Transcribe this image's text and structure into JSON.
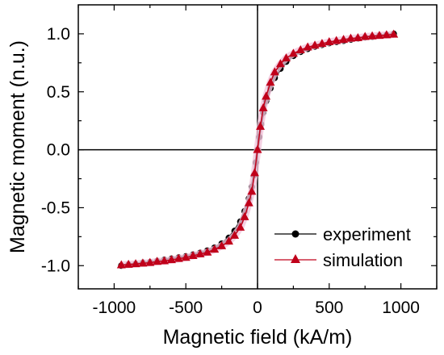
{
  "chart_data": {
    "type": "line",
    "xlabel": "Magnetic field (kA/m)",
    "ylabel": "Magnetic moment (n.u.)",
    "xlim": [
      -1250,
      1250
    ],
    "ylim": [
      -1.2,
      1.25
    ],
    "xticks": [
      -1000,
      -500,
      0,
      500,
      1000
    ],
    "xtick_labels": [
      "-1000",
      "-500",
      "0",
      "500",
      "1000"
    ],
    "yticks": [
      -1.0,
      -0.5,
      0.0,
      0.5,
      1.0
    ],
    "ytick_labels": [
      "-1.0",
      "-0.5",
      "0.0",
      "0.5",
      "1.0"
    ],
    "zero_lines": true,
    "legend_position": "bottom-right",
    "series": [
      {
        "name": "experiment",
        "color": "#000000",
        "marker": "circle",
        "x": [
          -950,
          -900,
          -850,
          -800,
          -750,
          -700,
          -650,
          -600,
          -550,
          -500,
          -450,
          -400,
          -350,
          -300,
          -250,
          -200,
          -160,
          -120,
          -90,
          -60,
          -40,
          -25,
          -12,
          0,
          12,
          25,
          40,
          60,
          90,
          120,
          160,
          200,
          250,
          300,
          350,
          400,
          450,
          500,
          550,
          600,
          650,
          700,
          750,
          800,
          850,
          900,
          950
        ],
        "y": [
          -1.0,
          -0.99,
          -0.985,
          -0.975,
          -0.97,
          -0.96,
          -0.95,
          -0.94,
          -0.93,
          -0.92,
          -0.905,
          -0.89,
          -0.87,
          -0.845,
          -0.81,
          -0.76,
          -0.7,
          -0.62,
          -0.53,
          -0.42,
          -0.32,
          -0.22,
          -0.11,
          0.0,
          0.11,
          0.22,
          0.32,
          0.42,
          0.53,
          0.62,
          0.7,
          0.76,
          0.81,
          0.845,
          0.87,
          0.89,
          0.905,
          0.92,
          0.93,
          0.94,
          0.95,
          0.96,
          0.97,
          0.975,
          0.985,
          0.99,
          1.0
        ]
      },
      {
        "name": "simulation",
        "color": "#c0001a",
        "marker": "triangle",
        "x": [
          -950,
          -900,
          -850,
          -800,
          -750,
          -700,
          -650,
          -600,
          -550,
          -500,
          -450,
          -400,
          -350,
          -300,
          -250,
          -200,
          -160,
          -120,
          -90,
          -60,
          -40,
          -20,
          0,
          20,
          40,
          60,
          90,
          120,
          160,
          200,
          250,
          300,
          350,
          400,
          450,
          500,
          550,
          600,
          650,
          700,
          750,
          800,
          850,
          900,
          950
        ],
        "y": [
          -0.995,
          -0.99,
          -0.985,
          -0.98,
          -0.975,
          -0.965,
          -0.96,
          -0.95,
          -0.94,
          -0.93,
          -0.915,
          -0.9,
          -0.885,
          -0.86,
          -0.83,
          -0.79,
          -0.74,
          -0.67,
          -0.58,
          -0.46,
          -0.36,
          -0.2,
          0.0,
          0.2,
          0.36,
          0.46,
          0.58,
          0.67,
          0.74,
          0.79,
          0.83,
          0.86,
          0.885,
          0.9,
          0.915,
          0.93,
          0.94,
          0.95,
          0.96,
          0.965,
          0.975,
          0.98,
          0.985,
          0.99,
          0.995
        ]
      }
    ]
  }
}
